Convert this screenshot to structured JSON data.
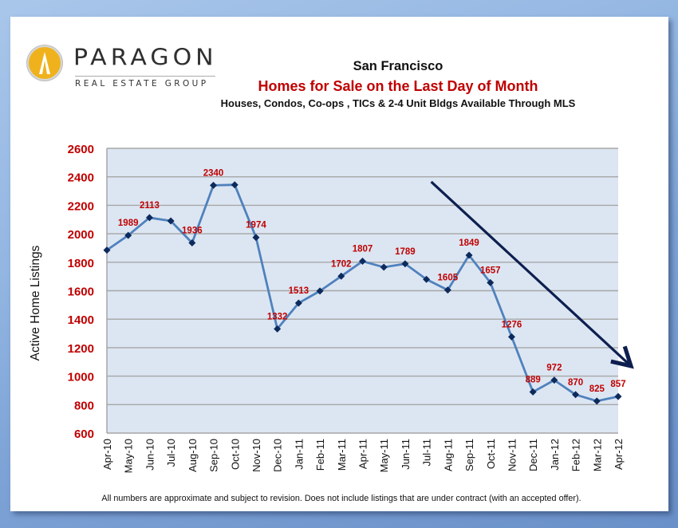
{
  "logo": {
    "brand": "PARAGON",
    "tagline": "REAL ESTATE GROUP",
    "colors": {
      "circle": "#f0b21c",
      "text": "#2f2f2f"
    }
  },
  "footer_note": "All numbers are approximate and subject to revision. Does not include listings that are under contract (with an accepted offer).",
  "colors": {
    "line": "#4f81bd",
    "marker": "#0d2a5c",
    "data_label": "#c00000",
    "axis_label": "#c00000",
    "plot_bg": "#dce6f2",
    "gridline": "#a6a6a6",
    "trend_arrow": "#0d1f4f"
  },
  "chart_data": {
    "type": "line",
    "title": "San Francisco",
    "subtitle": "Homes for Sale on the Last Day of Month",
    "subtitle2": "Houses, Condos, Co-ops , TICs & 2-4 Unit Bldgs Available Through MLS",
    "xlabel": "",
    "ylabel": "Active Home Listings",
    "ylim": [
      600,
      2600
    ],
    "yticks": [
      600,
      800,
      1000,
      1200,
      1400,
      1600,
      1800,
      2000,
      2200,
      2400,
      2600
    ],
    "grid": true,
    "legend": "none",
    "categories": [
      "Apr-10",
      "May-10",
      "Jun-10",
      "Jul-10",
      "Aug-10",
      "Sep-10",
      "Oct-10",
      "Nov-10",
      "Dec-10",
      "Jan-11",
      "Feb-11",
      "Mar-11",
      "Apr-11",
      "May-11",
      "Jun-11",
      "Jul-11",
      "Aug-11",
      "Sep-11",
      "Oct-11",
      "Nov-11",
      "Dec-11",
      "Jan-12",
      "Feb-12",
      "Mar-12",
      "Apr-12"
    ],
    "series": [
      {
        "name": "Active Home Listings",
        "values": [
          1885,
          1989,
          2113,
          2090,
          1936,
          2340,
          2344,
          1974,
          1332,
          1513,
          1598,
          1702,
          1807,
          1765,
          1789,
          1680,
          1605,
          1849,
          1657,
          1276,
          889,
          972,
          870,
          825,
          857
        ],
        "labeled": [
          false,
          true,
          true,
          false,
          true,
          true,
          false,
          true,
          true,
          true,
          false,
          true,
          true,
          false,
          true,
          false,
          true,
          true,
          true,
          true,
          true,
          true,
          true,
          true,
          true
        ]
      }
    ],
    "annotations": [
      {
        "type": "arrow",
        "description": "downward trend arrow",
        "from": {
          "x": "Jul-11",
          "y": 2365
        },
        "to": {
          "x": "after Apr-12",
          "y": 1060
        }
      }
    ]
  }
}
